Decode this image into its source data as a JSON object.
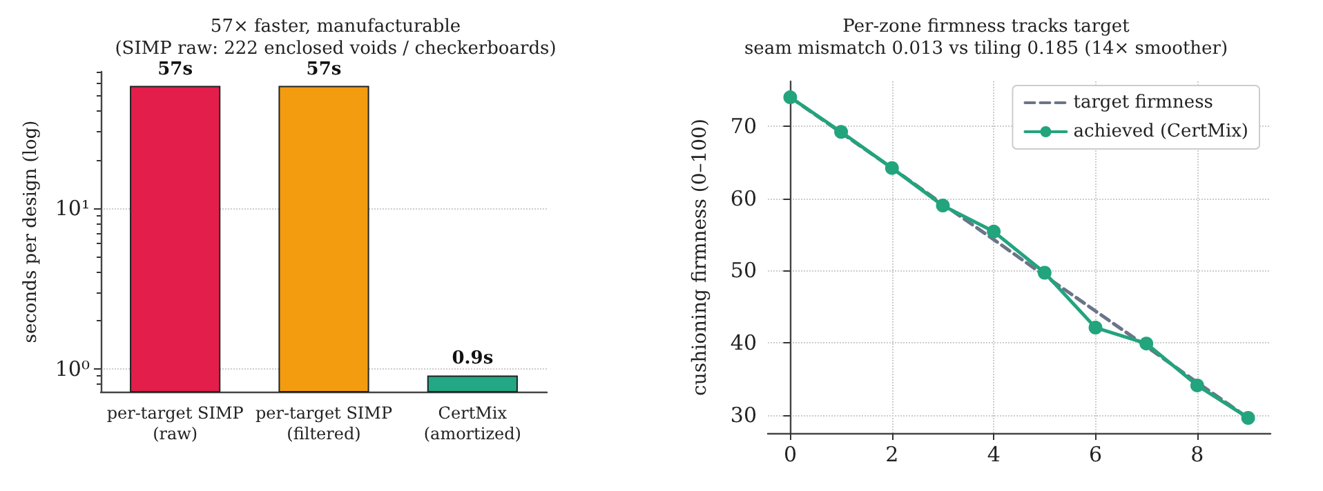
{
  "chart_data": [
    {
      "type": "bar",
      "title": "57× faster, manufacturable",
      "subtitle": "(SIMP raw: 222 enclosed voids / checkerboards)",
      "ylabel": "seconds per design (log)",
      "categories": [
        "per-target SIMP\n(raw)",
        "per-target SIMP\n(filtered)",
        "CertMix\n(amortized)"
      ],
      "values": [
        57,
        57,
        0.9
      ],
      "colors": [
        "#e31e4b",
        "#f39c0f",
        "#22a884"
      ],
      "value_labels": [
        "57s",
        "57s",
        "0.9s"
      ],
      "log": true,
      "ylim": [
        0.72,
        70.5
      ],
      "yticks": [
        {
          "value": 1,
          "label": "10⁰"
        },
        {
          "value": 10,
          "label": "10¹"
        }
      ],
      "grid": "y"
    },
    {
      "type": "line",
      "title": "Per-zone firmness tracks target",
      "subtitle": "seam mismatch 0.013 vs tiling 0.185 (14× smoother)",
      "ylabel": "cushioning firmness (0–100)",
      "x": [
        0,
        1,
        2,
        3,
        4,
        5,
        6,
        7,
        8,
        9
      ],
      "series": [
        {
          "name": "target firmness",
          "color": "#6b7488",
          "line_style": "dashed",
          "marker": "none",
          "values": [
            74.0,
            69.1,
            64.2,
            59.2,
            54.3,
            49.3,
            44.4,
            39.5,
            34.5,
            29.6
          ]
        },
        {
          "name": "achieved (CertMix)",
          "color": "#22a47c",
          "line_style": "solid",
          "marker": "circle",
          "values": [
            74.0,
            69.2,
            64.2,
            59.0,
            55.4,
            49.7,
            42.1,
            39.9,
            34.1,
            29.6
          ]
        }
      ],
      "xlim": [
        -0.44,
        9.44
      ],
      "xticks": [
        0,
        2,
        4,
        6,
        8
      ],
      "ylim": [
        27.5,
        76.2
      ],
      "yticks": [
        30,
        40,
        50,
        60,
        70
      ],
      "grid": true,
      "legend": "top right"
    }
  ]
}
